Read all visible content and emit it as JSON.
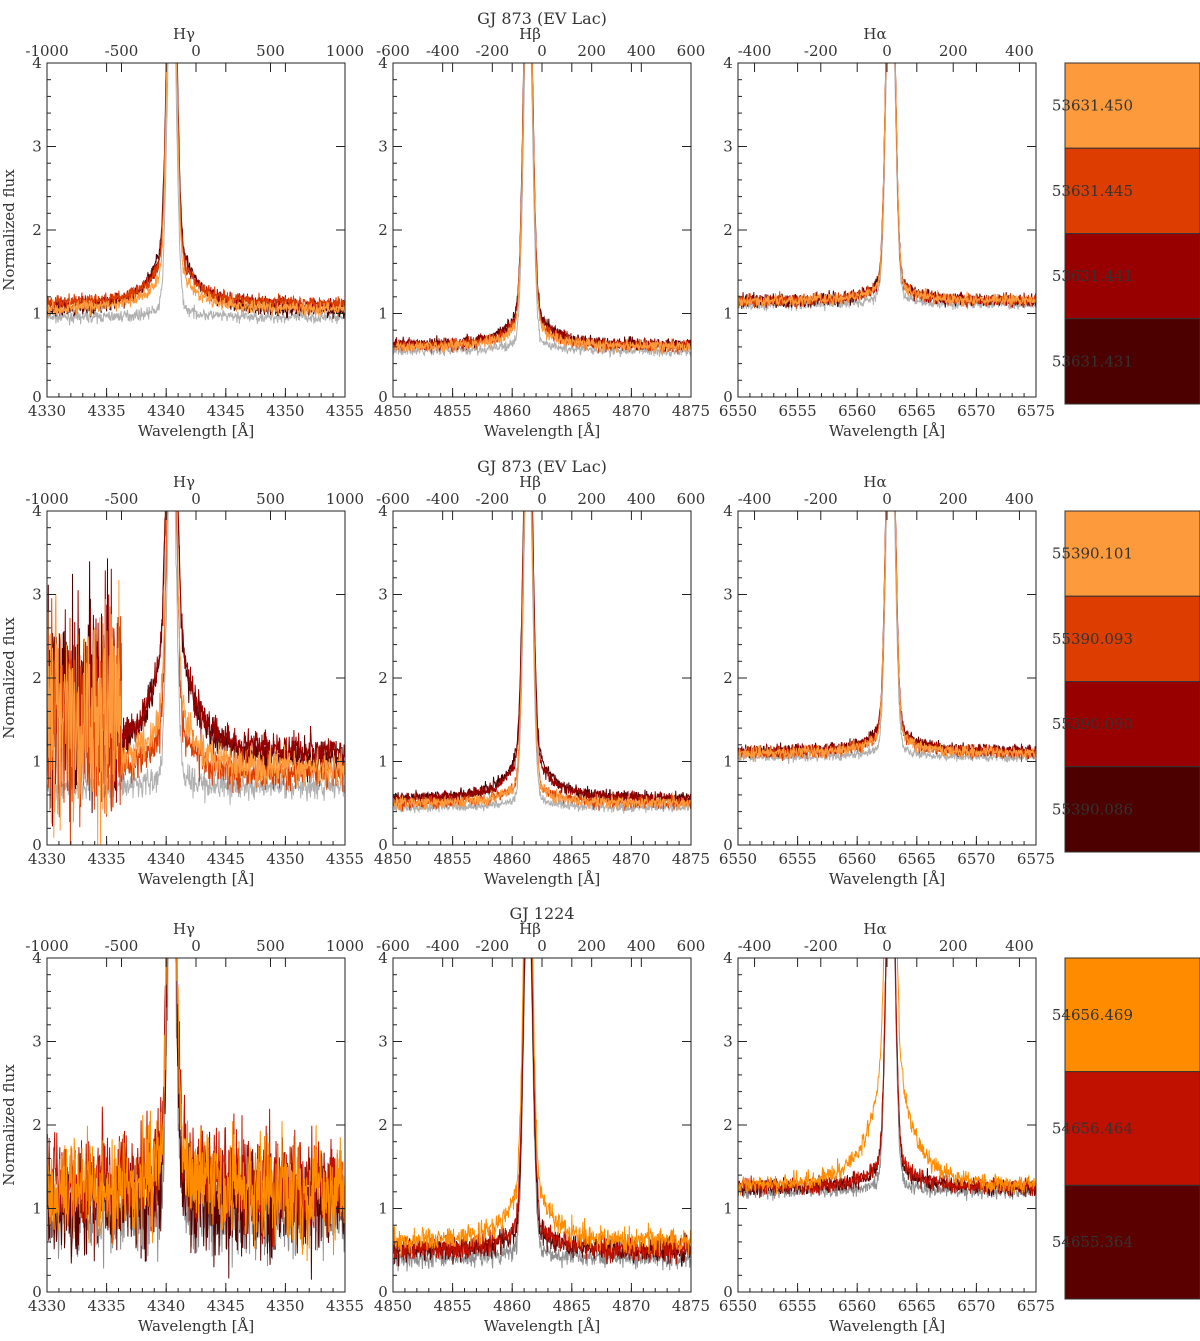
{
  "chart_data": {
    "type": "line",
    "ylabel": "Normalized flux",
    "xlabel": "Wavelength [Å]",
    "ylim": [
      0,
      4
    ],
    "yticks": [
      0,
      1,
      2,
      3,
      4
    ],
    "lines": [
      {
        "name": "Hγ",
        "xlim": [
          4330,
          4355
        ],
        "xticks": [
          4330,
          4335,
          4340,
          4345,
          4350,
          4355
        ],
        "center": 4340.47,
        "vlim": [
          -1000,
          1000
        ],
        "vticks": [
          -1000,
          -500,
          0,
          500,
          1000
        ]
      },
      {
        "name": "Hβ",
        "xlim": [
          4850,
          4875
        ],
        "xticks": [
          4850,
          4855,
          4860,
          4865,
          4870,
          4875
        ],
        "center": 4861.33,
        "vlim": [
          -600,
          600
        ],
        "vticks": [
          -600,
          -400,
          -200,
          0,
          200,
          400,
          600
        ]
      },
      {
        "name": "Hα",
        "xlim": [
          6550,
          6575
        ],
        "xticks": [
          6550,
          6555,
          6560,
          6565,
          6570,
          6575
        ],
        "center": 6562.8,
        "vlim": [
          -450,
          450
        ],
        "vticks": [
          -400,
          -200,
          0,
          200,
          400
        ]
      }
    ],
    "rows": [
      {
        "title": "GJ 873 (EV Lac)",
        "epochs": [
          {
            "mjd": "53631.450",
            "color": "#fd9a3c"
          },
          {
            "mjd": "53631.445",
            "color": "#dd3e00"
          },
          {
            "mjd": "53631.441",
            "color": "#980000"
          },
          {
            "mjd": "53631.431",
            "color": "#4c0000"
          }
        ],
        "quiescent_color": "#b0b0b0",
        "line_profiles": [
          {
            "line": "Hγ",
            "continuum": [
              1.05,
              1.12,
              1.1,
              1.02
            ],
            "quiescent_continuum": 0.95,
            "peak": [
              5,
              5,
              5,
              5
            ],
            "wing_amp": [
              0.55,
              0.65,
              0.75,
              1.0
            ],
            "noise": 0.08
          },
          {
            "line": "Hβ",
            "continuum": [
              0.6,
              0.6,
              0.62,
              0.62
            ],
            "quiescent_continuum": 0.55,
            "peak": [
              5,
              5,
              5,
              5
            ],
            "wing_amp": [
              0.35,
              0.4,
              0.45,
              0.5
            ],
            "noise": 0.07
          },
          {
            "line": "Hα",
            "continuum": [
              1.15,
              1.15,
              1.15,
              1.15
            ],
            "quiescent_continuum": 1.1,
            "peak": [
              5,
              5,
              5,
              5
            ],
            "wing_amp": [
              0.25,
              0.25,
              0.25,
              0.28
            ],
            "noise": 0.07
          }
        ]
      },
      {
        "title": "GJ 873 (EV Lac)",
        "epochs": [
          {
            "mjd": "55390.101",
            "color": "#fd9a3c"
          },
          {
            "mjd": "55390.093",
            "color": "#dd3e00"
          },
          {
            "mjd": "55390.090",
            "color": "#980000"
          },
          {
            "mjd": "55390.086",
            "color": "#4c0000"
          }
        ],
        "quiescent_color": "#b0b0b0",
        "line_profiles": [
          {
            "line": "Hγ",
            "continuum": [
              0.9,
              0.85,
              1.1,
              1.0
            ],
            "quiescent_continuum": 0.7,
            "peak": [
              5,
              5,
              5,
              5
            ],
            "wing_amp": [
              0.9,
              0.6,
              1.6,
              1.7
            ],
            "noise": 0.2,
            "blue_noisy": true
          },
          {
            "line": "Hβ",
            "continuum": [
              0.5,
              0.5,
              0.55,
              0.55
            ],
            "quiescent_continuum": 0.45,
            "peak": [
              5,
              5,
              5,
              5
            ],
            "wing_amp": [
              0.25,
              0.3,
              0.6,
              0.7
            ],
            "noise": 0.07
          },
          {
            "line": "Hα",
            "continuum": [
              1.1,
              1.1,
              1.12,
              1.12
            ],
            "quiescent_continuum": 1.05,
            "peak": [
              5,
              5,
              5,
              5
            ],
            "wing_amp": [
              0.3,
              0.3,
              0.35,
              0.35
            ],
            "noise": 0.07
          }
        ]
      },
      {
        "title": "GJ 1224",
        "epochs": [
          {
            "mjd": "54656.469",
            "color": "#ff8c00"
          },
          {
            "mjd": "54656.464",
            "color": "#bf1000"
          },
          {
            "mjd": "54655.364",
            "color": "#5a0000"
          }
        ],
        "quiescent_color": "#909090",
        "line_profiles": [
          {
            "line": "Hγ",
            "continuum": [
              1.2,
              1.3,
              1.0
            ],
            "quiescent_continuum": 0.9,
            "peak": [
              5,
              5,
              5
            ],
            "wing_amp": [
              0.6,
              0.5,
              0.3
            ],
            "noise": 0.6
          },
          {
            "line": "Hβ",
            "continuum": [
              0.6,
              0.5,
              0.5
            ],
            "quiescent_continuum": 0.4,
            "peak": [
              5,
              5,
              4.5
            ],
            "wing_amp": [
              0.8,
              0.4,
              0.3
            ],
            "noise": 0.14
          },
          {
            "line": "Hα",
            "continuum": [
              1.25,
              1.25,
              1.25
            ],
            "quiescent_continuum": 1.2,
            "peak": [
              5,
              4.5,
              4.5
            ],
            "wing_amp": [
              1.7,
              0.4,
              0.35
            ],
            "noise": 0.1
          }
        ]
      }
    ]
  }
}
